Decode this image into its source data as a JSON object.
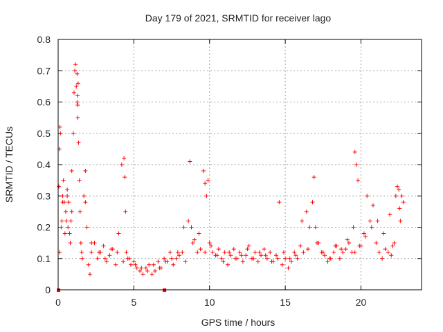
{
  "chart_data": {
    "type": "scatter",
    "title": "Day 179 of 2021, SRMTID for receiver lago",
    "xlabel": "GPS time / hours",
    "ylabel": "SRMTID / TECUs",
    "xlim": [
      0,
      24
    ],
    "ylim": [
      0,
      0.8
    ],
    "x_ticks": [
      0,
      5,
      10,
      15,
      20
    ],
    "y_ticks": [
      0,
      0.1,
      0.2,
      0.3,
      0.4,
      0.5,
      0.6,
      0.7,
      0.8
    ],
    "x_tick_labels": [
      "0",
      "5",
      "10",
      "15",
      "20"
    ],
    "y_tick_labels": [
      "0",
      "0.1",
      "0.2",
      "0.3",
      "0.4",
      "0.5",
      "0.6",
      "0.7",
      "0.8"
    ],
    "grid": true,
    "marker": "+",
    "series_color": "#ff0000",
    "series": [
      {
        "name": "SRMTID",
        "x": [
          0.05,
          0.08,
          0.12,
          0.15,
          0.2,
          0.25,
          0.3,
          0.35,
          0.4,
          0.45,
          0.5,
          0.55,
          0.6,
          0.65,
          0.7,
          0.75,
          0.8,
          0.85,
          0.9,
          1.0,
          1.05,
          1.1,
          1.15,
          1.2,
          1.25,
          1.3,
          1.35,
          1.4,
          1.45,
          1.5,
          1.55,
          1.6,
          1.7,
          1.8,
          1.9,
          2.0,
          2.1,
          2.2,
          2.4,
          2.6,
          2.8,
          3.0,
          3.2,
          3.4,
          3.6,
          3.8,
          4.0,
          4.2,
          4.35,
          4.4,
          4.45,
          4.5,
          4.6,
          4.8,
          5.0,
          5.2,
          5.4,
          5.6,
          5.8,
          6.0,
          6.2,
          6.4,
          6.6,
          6.8,
          7.0,
          7.2,
          7.4,
          7.6,
          7.8,
          8.0,
          8.2,
          8.4,
          8.6,
          8.7,
          8.8,
          9.0,
          9.2,
          9.4,
          9.6,
          9.7,
          9.8,
          9.9,
          10.0,
          10.2,
          10.4,
          10.6,
          10.8,
          11.0,
          11.2,
          11.4,
          11.6,
          11.8,
          12.0,
          12.2,
          12.4,
          12.6,
          12.8,
          13.0,
          13.2,
          13.4,
          13.6,
          13.8,
          14.0,
          14.2,
          14.4,
          14.6,
          14.8,
          15.0,
          15.2,
          15.4,
          15.6,
          15.8,
          16.0,
          16.2,
          16.4,
          16.6,
          16.8,
          16.9,
          17.0,
          17.2,
          17.4,
          17.6,
          17.8,
          18.0,
          18.2,
          18.4,
          18.6,
          18.8,
          19.0,
          19.2,
          19.4,
          19.5,
          19.6,
          19.7,
          19.8,
          20.0,
          20.2,
          20.4,
          20.6,
          20.8,
          21.0,
          21.2,
          21.4,
          21.6,
          21.8,
          22.0,
          22.2,
          22.3,
          22.4,
          22.5,
          22.6,
          22.7,
          22.8,
          0.1,
          0.3,
          0.6,
          0.9,
          1.25,
          1.3,
          1.28,
          1.32,
          1.8,
          2.2,
          2.7,
          3.1,
          3.5,
          3.9,
          4.3,
          4.7,
          5.1,
          5.5,
          5.9,
          6.3,
          6.7,
          7.1,
          7.5,
          7.9,
          8.3,
          8.9,
          9.3,
          9.7,
          10.1,
          10.5,
          10.9,
          11.3,
          11.7,
          12.1,
          12.5,
          12.9,
          13.3,
          13.7,
          14.1,
          14.5,
          14.9,
          15.3,
          15.7,
          16.1,
          16.5,
          17.1,
          17.5,
          17.9,
          18.3,
          18.7,
          19.1,
          19.6,
          19.9,
          20.3,
          20.7,
          21.1,
          21.5,
          21.9,
          22.1,
          22.55
        ],
        "y": [
          0.33,
          0.45,
          0.52,
          0.5,
          0.2,
          0.22,
          0.3,
          0.35,
          0.28,
          0.18,
          0.25,
          0.22,
          0.3,
          0.2,
          0.28,
          0.18,
          0.15,
          0.22,
          0.25,
          0.5,
          0.63,
          0.7,
          0.72,
          0.65,
          0.6,
          0.55,
          0.47,
          0.35,
          0.25,
          0.15,
          0.12,
          0.1,
          0.3,
          0.38,
          0.2,
          0.08,
          0.05,
          0.12,
          0.15,
          0.1,
          0.12,
          0.14,
          0.09,
          0.11,
          0.13,
          0.08,
          0.18,
          0.4,
          0.42,
          0.36,
          0.25,
          0.12,
          0.1,
          0.08,
          0.09,
          0.07,
          0.06,
          0.05,
          0.07,
          0.08,
          0.05,
          0.06,
          0.09,
          0.07,
          0.1,
          0.09,
          0.12,
          0.08,
          0.1,
          0.11,
          0.12,
          0.09,
          0.22,
          0.41,
          0.2,
          0.16,
          0.12,
          0.13,
          0.38,
          0.34,
          0.3,
          0.35,
          0.15,
          0.12,
          0.11,
          0.13,
          0.1,
          0.12,
          0.08,
          0.11,
          0.13,
          0.1,
          0.12,
          0.09,
          0.11,
          0.14,
          0.1,
          0.12,
          0.09,
          0.11,
          0.13,
          0.1,
          0.12,
          0.09,
          0.11,
          0.28,
          0.08,
          0.1,
          0.07,
          0.09,
          0.12,
          0.1,
          0.14,
          0.12,
          0.25,
          0.2,
          0.28,
          0.36,
          0.2,
          0.15,
          0.12,
          0.11,
          0.09,
          0.1,
          0.12,
          0.14,
          0.1,
          0.12,
          0.13,
          0.15,
          0.12,
          0.2,
          0.44,
          0.4,
          0.35,
          0.14,
          0.18,
          0.3,
          0.22,
          0.27,
          0.15,
          0.12,
          0.1,
          0.13,
          0.12,
          0.11,
          0.15,
          0.3,
          0.33,
          0.32,
          0.22,
          0.3,
          0.28,
          0.12,
          0.28,
          0.32,
          0.38,
          0.69,
          0.59,
          0.62,
          0.66,
          0.28,
          0.15,
          0.12,
          0.1,
          0.13,
          0.12,
          0.09,
          0.1,
          0.08,
          0.07,
          0.06,
          0.08,
          0.07,
          0.09,
          0.1,
          0.12,
          0.2,
          0.15,
          0.18,
          0.12,
          0.14,
          0.11,
          0.09,
          0.12,
          0.1,
          0.11,
          0.13,
          0.1,
          0.12,
          0.11,
          0.09,
          0.1,
          0.12,
          0.1,
          0.11,
          0.22,
          0.13,
          0.15,
          0.12,
          0.1,
          0.14,
          0.13,
          0.16,
          0.12,
          0.14,
          0.17,
          0.2,
          0.22,
          0.18,
          0.24,
          0.14,
          0.26
        ]
      }
    ],
    "zero_markers_x": [
      0.0,
      7.0
    ]
  }
}
